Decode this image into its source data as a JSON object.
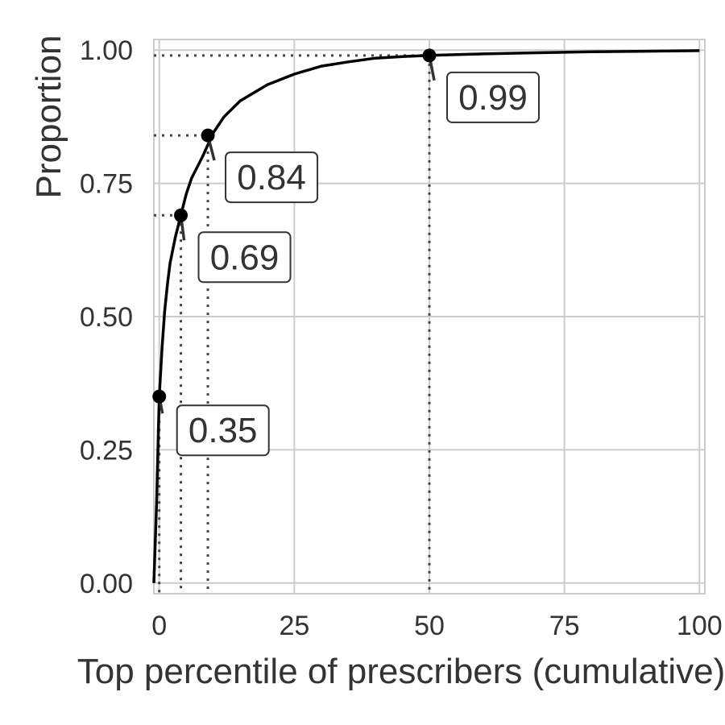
{
  "chart_data": {
    "type": "line",
    "title": "",
    "xlabel": "Top percentile of prescribers (cumulative)",
    "ylabel": "Proportion",
    "xlim": [
      -1,
      101
    ],
    "ylim": [
      -0.02,
      1.02
    ],
    "x_ticks": [
      0,
      25,
      50,
      75,
      100
    ],
    "x_tick_labels": [
      "0",
      "25",
      "50",
      "75",
      "100"
    ],
    "y_ticks": [
      0.0,
      0.25,
      0.5,
      0.75,
      1.0
    ],
    "y_tick_labels": [
      "0.00",
      "0.25",
      "0.50",
      "0.75",
      "1.00"
    ],
    "grid": true,
    "series": [
      {
        "x": [
          -1,
          -0.5,
          0,
          0.5,
          1,
          1.5,
          2,
          3,
          4,
          5,
          6,
          8,
          10,
          12,
          15,
          20,
          25,
          30,
          35,
          40,
          45,
          50,
          60,
          70,
          80,
          90,
          100
        ],
        "y": [
          0.0,
          0.15,
          0.35,
          0.44,
          0.51,
          0.56,
          0.6,
          0.65,
          0.69,
          0.73,
          0.76,
          0.8,
          0.845,
          0.875,
          0.905,
          0.935,
          0.955,
          0.97,
          0.978,
          0.985,
          0.988,
          0.99,
          0.993,
          0.995,
          0.997,
          0.998,
          0.999
        ]
      }
    ],
    "highlighted_points": [
      {
        "x": 0,
        "y": 0.35,
        "label": "0.35"
      },
      {
        "x": 4,
        "y": 0.69,
        "label": "0.69"
      },
      {
        "x": 9,
        "y": 0.84,
        "label": "0.84"
      },
      {
        "x": 50,
        "y": 0.99,
        "label": "0.99"
      }
    ]
  }
}
